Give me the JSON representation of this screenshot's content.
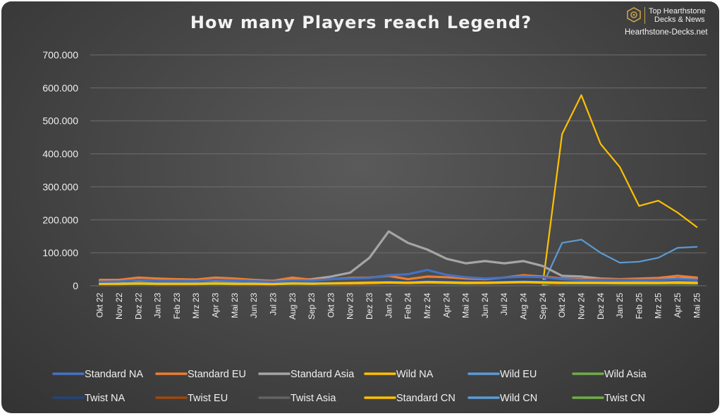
{
  "brand": {
    "line1": "Top Hearthstone",
    "line2": "Decks & News",
    "url": "Hearthstone-Decks.net",
    "logo_icon": "hearthstone-logo-icon",
    "accent": "#c9a14a"
  },
  "chart_data": {
    "type": "line",
    "title": "How many Players reach Legend?",
    "xlabel": "",
    "ylabel": "",
    "ylim": [
      0,
      700000
    ],
    "yticks": [
      "0",
      "100.000",
      "200.000",
      "300.000",
      "400.000",
      "500.000",
      "600.000",
      "700.000"
    ],
    "grid": true,
    "legend_position": "bottom",
    "categories": [
      "Okt 22",
      "Nov 22",
      "Dez 22",
      "Jan 23",
      "Feb 23",
      "Mrz 23",
      "Apr 23",
      "Mai 23",
      "Jun 23",
      "Jul 23",
      "Aug 23",
      "Sep 23",
      "Okt 23",
      "Nov 23",
      "Dez 23",
      "Jan 24",
      "Feb 24",
      "Mrz 24",
      "Apr 24",
      "Mai 24",
      "Jun 24",
      "Jul 24",
      "Aug 24",
      "Sep 24",
      "Okt 24",
      "Nov 24",
      "Dez 24",
      "Jan 25",
      "Feb 25",
      "Mrz 25",
      "Apr 25",
      "Mai 25"
    ],
    "series": [
      {
        "name": "Standard NA",
        "color": "#4472c4",
        "values": [
          12000,
          13000,
          18000,
          15000,
          15000,
          14000,
          18000,
          16000,
          14000,
          12000,
          16000,
          15000,
          20000,
          22000,
          24000,
          32000,
          35000,
          48000,
          33000,
          26000,
          22000,
          25000,
          28000,
          26000,
          20000,
          18000,
          18000,
          18000,
          17000,
          18000,
          20000,
          18000
        ]
      },
      {
        "name": "Standard EU",
        "color": "#ed7d31",
        "values": [
          18000,
          18000,
          25000,
          22000,
          20000,
          19000,
          25000,
          22000,
          18000,
          15000,
          25000,
          18000,
          20000,
          24000,
          25000,
          30000,
          20000,
          28000,
          26000,
          22000,
          20000,
          25000,
          32000,
          28000,
          22000,
          20000,
          20000,
          20000,
          22000,
          24000,
          30000,
          25000
        ]
      },
      {
        "name": "Standard Asia",
        "color": "#a5a5a5",
        "values": [
          15000,
          15000,
          16000,
          15000,
          15000,
          15000,
          16000,
          15000,
          15000,
          15000,
          18000,
          20000,
          28000,
          40000,
          85000,
          165000,
          130000,
          110000,
          82000,
          68000,
          75000,
          68000,
          75000,
          60000,
          30000,
          28000,
          22000,
          20000,
          20000,
          22000,
          22000,
          22000
        ]
      },
      {
        "name": "Wild NA",
        "color": "#ffc000",
        "values": [
          6000,
          6000,
          7000,
          6000,
          6000,
          6000,
          7000,
          6000,
          6000,
          5000,
          7000,
          6000,
          7000,
          8000,
          9000,
          10000,
          9000,
          11000,
          10000,
          9000,
          9000,
          10000,
          11000,
          10000,
          9000,
          9000,
          9000,
          9000,
          9000,
          9000,
          10000,
          9000
        ]
      },
      {
        "name": "Wild EU",
        "color": "#5b9bd5",
        "values": [
          7000,
          7000,
          8000,
          7000,
          7000,
          7000,
          8000,
          7000,
          7000,
          6000,
          8000,
          7000,
          8000,
          9000,
          10000,
          11000,
          10000,
          12000,
          11000,
          10000,
          10000,
          11000,
          12000,
          11000,
          10000,
          10000,
          10000,
          10000,
          10000,
          10000,
          11000,
          10000
        ]
      },
      {
        "name": "Wild Asia",
        "color": "#70ad47",
        "values": [
          5000,
          5000,
          6000,
          5000,
          5000,
          5000,
          6000,
          5000,
          5000,
          5000,
          6000,
          6000,
          7000,
          8000,
          9000,
          10000,
          9000,
          10000,
          9000,
          8000,
          9000,
          10000,
          11000,
          10000,
          8000,
          8000,
          8000,
          7000,
          7000,
          7000,
          8000,
          7000
        ]
      },
      {
        "name": "Twist NA",
        "color": "#264478",
        "values": [
          4000,
          4000,
          5000,
          4000,
          4000,
          4000,
          5000,
          4000,
          4000,
          4000,
          5000,
          5000,
          6000,
          8000,
          10000,
          14000,
          12000,
          14000,
          13000,
          12000,
          12000,
          14000,
          16000,
          15000,
          6000,
          6000,
          6000,
          6000,
          6000,
          6000,
          7000,
          6000
        ]
      },
      {
        "name": "Twist EU",
        "color": "#9e480e",
        "values": [
          3000,
          3000,
          4000,
          3000,
          3000,
          3000,
          4000,
          3000,
          3000,
          3000,
          4000,
          4000,
          5000,
          6000,
          7000,
          9000,
          8000,
          9000,
          9000,
          8000,
          8000,
          9000,
          10000,
          9000,
          5000,
          5000,
          5000,
          5000,
          5000,
          5000,
          6000,
          5000
        ]
      },
      {
        "name": "Twist Asia",
        "color": "#636363",
        "values": [
          2000,
          2000,
          3000,
          2000,
          2000,
          2000,
          3000,
          2000,
          2000,
          2000,
          3000,
          3000,
          4000,
          5000,
          6000,
          8000,
          7000,
          8000,
          8000,
          7000,
          7000,
          8000,
          9000,
          8000,
          4000,
          4000,
          4000,
          4000,
          4000,
          4000,
          5000,
          4000
        ]
      },
      {
        "name": "Standard CN",
        "color": "#ffc000",
        "values": [
          null,
          null,
          null,
          null,
          null,
          null,
          null,
          null,
          null,
          null,
          null,
          null,
          null,
          null,
          null,
          null,
          null,
          null,
          null,
          null,
          null,
          null,
          null,
          5000,
          460000,
          578000,
          430000,
          360000,
          242000,
          258000,
          222000,
          178000
        ]
      },
      {
        "name": "Wild CN",
        "color": "#5b9bd5",
        "values": [
          null,
          null,
          null,
          null,
          null,
          null,
          null,
          null,
          null,
          null,
          null,
          null,
          null,
          null,
          null,
          null,
          null,
          null,
          null,
          null,
          null,
          null,
          null,
          3000,
          130000,
          140000,
          100000,
          70000,
          73000,
          85000,
          115000,
          118000
        ]
      },
      {
        "name": "Twist CN",
        "color": "#70ad47",
        "values": [
          null,
          null,
          null,
          null,
          null,
          null,
          null,
          null,
          null,
          null,
          null,
          null,
          null,
          null,
          null,
          null,
          null,
          null,
          null,
          null,
          null,
          null,
          null,
          2000,
          10000,
          10000,
          10000,
          9000,
          9000,
          9000,
          9000,
          8000
        ]
      }
    ]
  }
}
